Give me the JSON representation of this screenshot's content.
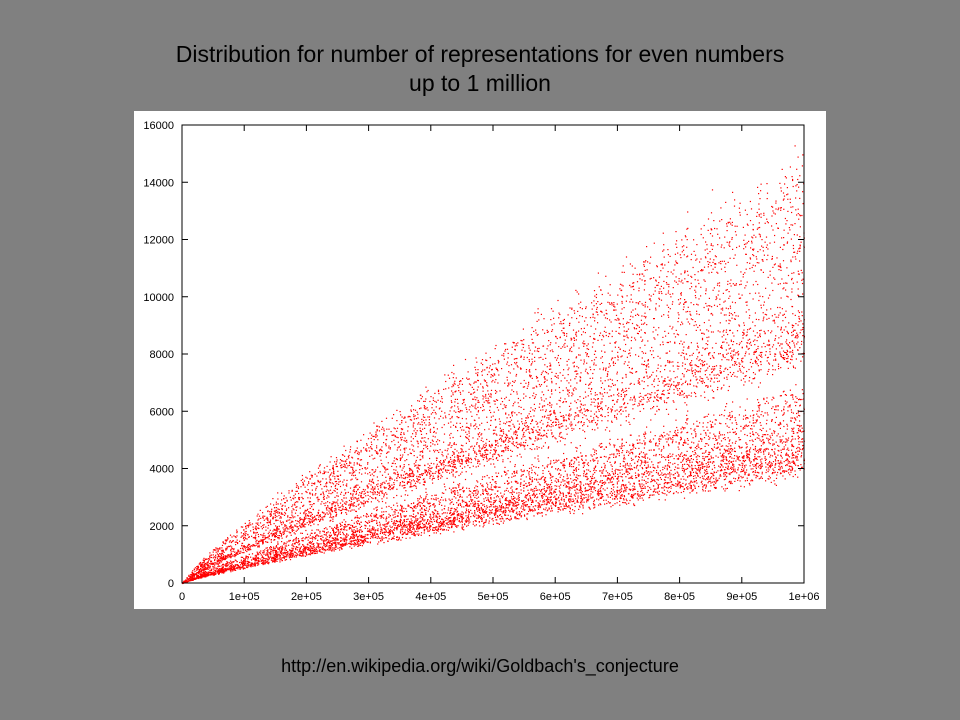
{
  "slide": {
    "title_line1": "Distribution for number of representations for even numbers",
    "title_line2": "up to 1 million",
    "source": "http://en.wikipedia.org/wiki/Goldbach's_conjecture"
  },
  "colors": {
    "background": "#808080",
    "plot_bg": "#ffffff",
    "points": "#ff0000"
  },
  "chart_data": {
    "type": "scatter",
    "title": "",
    "xlabel": "",
    "ylabel": "",
    "xlim": [
      0,
      1000000
    ],
    "ylim": [
      0,
      16000
    ],
    "x_ticks": [
      0,
      100000,
      200000,
      300000,
      400000,
      500000,
      600000,
      700000,
      800000,
      900000,
      1000000
    ],
    "x_tick_labels": [
      "0",
      "1e+05",
      "2e+05",
      "3e+05",
      "4e+05",
      "5e+05",
      "6e+05",
      "7e+05",
      "8e+05",
      "9e+05",
      "1e+06"
    ],
    "y_ticks": [
      0,
      2000,
      4000,
      6000,
      8000,
      10000,
      12000,
      14000,
      16000
    ],
    "y_tick_labels": [
      "0",
      "2000",
      "4000",
      "6000",
      "8000",
      "10000",
      "12000",
      "14000",
      "16000"
    ],
    "grid": false,
    "legend": "none",
    "series": [
      {
        "values_at_1e6": [
          4000,
          4300,
          4550,
          4800,
          5100,
          5400,
          6000,
          6500
        ]
      },
      {
        "values_at_1e6": [
          8100,
          8500,
          8900,
          9600,
          10800,
          11900,
          13000,
          14000
        ]
      }
    ]
  }
}
